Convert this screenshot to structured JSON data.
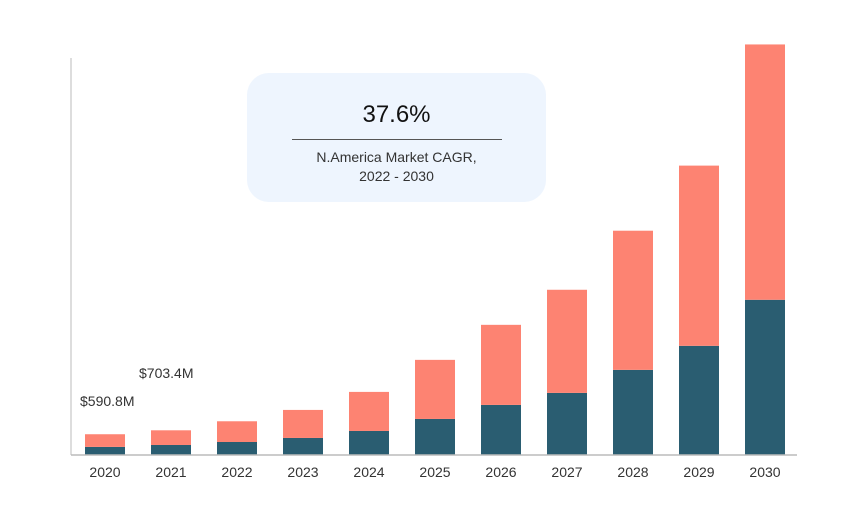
{
  "chart_data": {
    "type": "bar",
    "stacked": true,
    "categories": [
      "2020",
      "2021",
      "2022",
      "2023",
      "2024",
      "2025",
      "2026",
      "2027",
      "2028",
      "2029",
      "2030"
    ],
    "series": [
      {
        "values": [
          230,
          285,
          370,
          485,
          684,
          1026,
          1425,
          1767,
          2423,
          3107,
          4418
        ],
        "color": "#2a5d71"
      },
      {
        "values": [
          361,
          418,
          590,
          798,
          1112,
          1682,
          2280,
          2936,
          3961,
          5130,
          7268
        ],
        "color": "#fd8372"
      }
    ],
    "ylim": [
      0,
      11300
    ],
    "grid": false,
    "annotations": [
      {
        "category": "2020",
        "text": "$590.8M"
      },
      {
        "category": "2021",
        "text": "$703.4M"
      }
    ],
    "callout": {
      "value": "37.6%",
      "line1": "N.America Market CAGR,",
      "line2": "2022 - 2030"
    }
  }
}
